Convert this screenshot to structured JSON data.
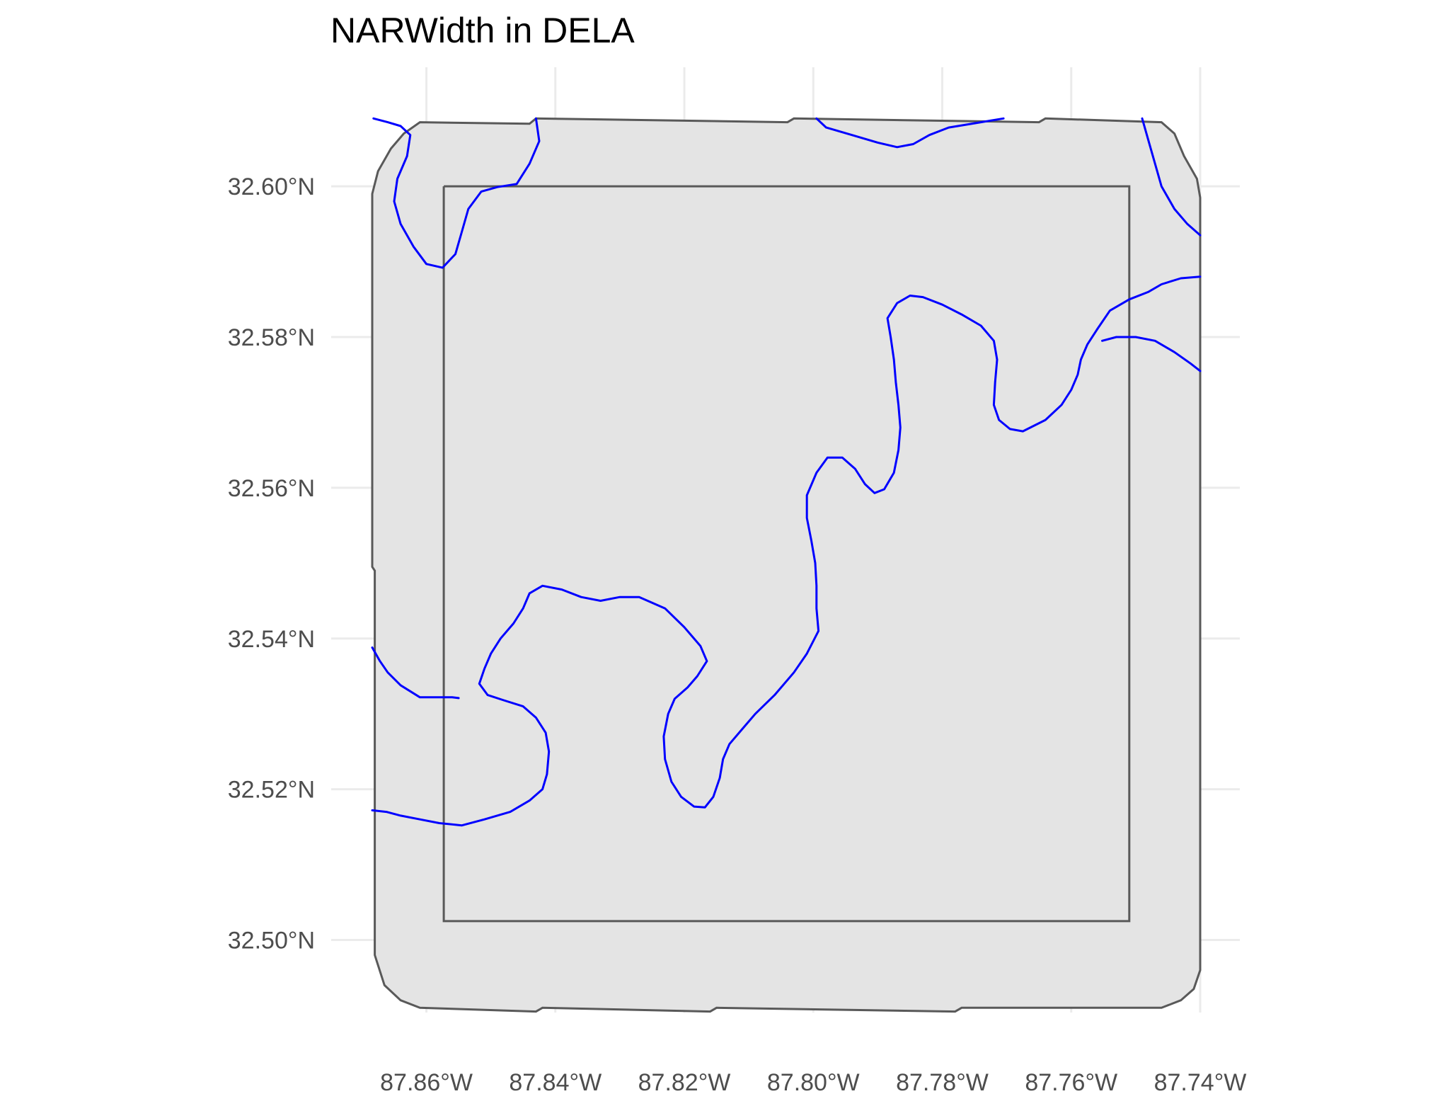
{
  "title": "NARWidth in DELA",
  "colors": {
    "background": "#ffffff",
    "gridline": "#ebebeb",
    "polygon_fill": "#e4e4e4",
    "polygon_stroke": "#595959",
    "river": "#0000ff",
    "tick_text": "#4d4d4d"
  },
  "map": {
    "x_range": [
      -87.8684,
      -87.74
    ],
    "y_range": [
      32.4915,
      32.6095
    ],
    "x_ticks": [
      {
        "value": -87.86,
        "label": "87.86°W"
      },
      {
        "value": -87.84,
        "label": "87.84°W"
      },
      {
        "value": -87.82,
        "label": "87.82°W"
      },
      {
        "value": -87.8,
        "label": "87.80°W"
      },
      {
        "value": -87.78,
        "label": "87.78°W"
      },
      {
        "value": -87.76,
        "label": "87.76°W"
      },
      {
        "value": -87.74,
        "label": "87.74°W"
      }
    ],
    "y_ticks": [
      {
        "value": 32.6,
        "label": "32.60°N"
      },
      {
        "value": 32.58,
        "label": "32.58°N"
      },
      {
        "value": 32.56,
        "label": "32.56°N"
      },
      {
        "value": 32.54,
        "label": "32.54°N"
      },
      {
        "value": 32.52,
        "label": "32.52°N"
      },
      {
        "value": 32.5,
        "label": "32.50°N"
      }
    ],
    "outer_boundary": [
      [
        -87.861,
        32.6085
      ],
      [
        -87.844,
        32.6083
      ],
      [
        -87.843,
        32.609
      ],
      [
        -87.804,
        32.6085
      ],
      [
        -87.803,
        32.609
      ],
      [
        -87.765,
        32.6085
      ],
      [
        -87.764,
        32.609
      ],
      [
        -87.746,
        32.6085
      ],
      [
        -87.744,
        32.607
      ],
      [
        -87.7425,
        32.604
      ],
      [
        -87.7405,
        32.601
      ],
      [
        -87.74,
        32.5985
      ],
      [
        -87.74,
        32.496
      ],
      [
        -87.741,
        32.4935
      ],
      [
        -87.743,
        32.492
      ],
      [
        -87.746,
        32.491
      ],
      [
        -87.777,
        32.491
      ],
      [
        -87.778,
        32.4905
      ],
      [
        -87.815,
        32.491
      ],
      [
        -87.816,
        32.4905
      ],
      [
        -87.842,
        32.491
      ],
      [
        -87.843,
        32.4905
      ],
      [
        -87.861,
        32.491
      ],
      [
        -87.864,
        32.492
      ],
      [
        -87.8665,
        32.494
      ],
      [
        -87.868,
        32.498
      ],
      [
        -87.868,
        32.549
      ],
      [
        -87.8684,
        32.5495
      ],
      [
        -87.8684,
        32.599
      ],
      [
        -87.8675,
        32.602
      ],
      [
        -87.8655,
        32.605
      ],
      [
        -87.8635,
        32.607
      ],
      [
        -87.861,
        32.6085
      ]
    ],
    "inner_box": [
      [
        -87.8573,
        32.6
      ],
      [
        -87.751,
        32.6
      ],
      [
        -87.751,
        32.5025
      ],
      [
        -87.8573,
        32.5025
      ],
      [
        -87.8573,
        32.6
      ]
    ],
    "rivers": [
      {
        "name": "channel-northwest-loop",
        "points": [
          [
            -87.8682,
            32.609
          ],
          [
            -87.866,
            32.6085
          ],
          [
            -87.864,
            32.608
          ],
          [
            -87.8625,
            32.6068
          ],
          [
            -87.863,
            32.604
          ],
          [
            -87.8645,
            32.601
          ],
          [
            -87.865,
            32.598
          ],
          [
            -87.864,
            32.595
          ],
          [
            -87.862,
            32.592
          ],
          [
            -87.86,
            32.5897
          ],
          [
            -87.8575,
            32.5892
          ],
          [
            -87.8555,
            32.591
          ],
          [
            -87.8545,
            32.594
          ],
          [
            -87.8535,
            32.597
          ],
          [
            -87.8515,
            32.5993
          ],
          [
            -87.849,
            32.5999
          ],
          [
            -87.846,
            32.6003
          ],
          [
            -87.844,
            32.603
          ],
          [
            -87.8425,
            32.606
          ],
          [
            -87.843,
            32.609
          ]
        ]
      },
      {
        "name": "channel-north-edge",
        "points": [
          [
            -87.7995,
            32.609
          ],
          [
            -87.798,
            32.6078
          ],
          [
            -87.794,
            32.6068
          ],
          [
            -87.79,
            32.6058
          ],
          [
            -87.787,
            32.6052
          ],
          [
            -87.7845,
            32.6056
          ],
          [
            -87.782,
            32.6068
          ],
          [
            -87.779,
            32.6078
          ],
          [
            -87.774,
            32.6085
          ],
          [
            -87.7705,
            32.609
          ]
        ]
      },
      {
        "name": "channel-northeast-corner",
        "points": [
          [
            -87.749,
            32.609
          ],
          [
            -87.748,
            32.606
          ],
          [
            -87.747,
            32.603
          ],
          [
            -87.746,
            32.6
          ],
          [
            -87.744,
            32.597
          ],
          [
            -87.742,
            32.595
          ],
          [
            -87.74,
            32.5935
          ]
        ]
      },
      {
        "name": "channel-east-upper",
        "points": [
          [
            -87.74,
            32.588
          ],
          [
            -87.743,
            32.5878
          ],
          [
            -87.746,
            32.587
          ],
          [
            -87.748,
            32.586
          ],
          [
            -87.751,
            32.585
          ],
          [
            -87.754,
            32.5835
          ],
          [
            -87.756,
            32.581
          ]
        ]
      },
      {
        "name": "channel-east-lower",
        "points": [
          [
            -87.7552,
            32.5795
          ],
          [
            -87.753,
            32.58
          ],
          [
            -87.75,
            32.58
          ],
          [
            -87.747,
            32.5795
          ],
          [
            -87.744,
            32.578
          ],
          [
            -87.7415,
            32.5765
          ],
          [
            -87.74,
            32.5755
          ]
        ]
      },
      {
        "name": "channel-main-meander",
        "points": [
          [
            -87.756,
            32.581
          ],
          [
            -87.7575,
            32.579
          ],
          [
            -87.7585,
            32.577
          ],
          [
            -87.759,
            32.575
          ],
          [
            -87.76,
            32.573
          ],
          [
            -87.7615,
            32.571
          ],
          [
            -87.764,
            32.569
          ],
          [
            -87.7675,
            32.5675
          ],
          [
            -87.7695,
            32.5678
          ],
          [
            -87.7712,
            32.569
          ],
          [
            -87.772,
            32.571
          ],
          [
            -87.7718,
            32.574
          ],
          [
            -87.7715,
            32.577
          ],
          [
            -87.772,
            32.5795
          ],
          [
            -87.774,
            32.5815
          ],
          [
            -87.777,
            32.583
          ],
          [
            -87.78,
            32.5843
          ],
          [
            -87.783,
            32.5853
          ],
          [
            -87.785,
            32.5855
          ],
          [
            -87.787,
            32.5845
          ],
          [
            -87.7885,
            32.5825
          ],
          [
            -87.788,
            32.58
          ],
          [
            -87.7875,
            32.577
          ],
          [
            -87.7872,
            32.574
          ],
          [
            -87.7868,
            32.571
          ],
          [
            -87.7865,
            32.568
          ],
          [
            -87.7868,
            32.565
          ],
          [
            -87.7875,
            32.562
          ],
          [
            -87.789,
            32.5598
          ],
          [
            -87.7905,
            32.5593
          ],
          [
            -87.792,
            32.5605
          ],
          [
            -87.7935,
            32.5625
          ],
          [
            -87.7955,
            32.564
          ],
          [
            -87.7978,
            32.564
          ],
          [
            -87.7995,
            32.562
          ],
          [
            -87.801,
            32.559
          ],
          [
            -87.801,
            32.556
          ],
          [
            -87.8003,
            32.553
          ],
          [
            -87.7997,
            32.55
          ],
          [
            -87.7995,
            32.547
          ],
          [
            -87.7995,
            32.544
          ],
          [
            -87.7992,
            32.541
          ],
          [
            -87.801,
            32.538
          ],
          [
            -87.803,
            32.5355
          ],
          [
            -87.806,
            32.5325
          ],
          [
            -87.809,
            32.53
          ],
          [
            -87.811,
            32.528
          ],
          [
            -87.813,
            32.526
          ],
          [
            -87.814,
            32.524
          ],
          [
            -87.8145,
            32.5215
          ],
          [
            -87.8155,
            32.519
          ],
          [
            -87.8168,
            32.5176
          ],
          [
            -87.8185,
            32.5177
          ],
          [
            -87.8205,
            32.519
          ],
          [
            -87.822,
            32.521
          ],
          [
            -87.823,
            32.524
          ],
          [
            -87.8232,
            32.527
          ],
          [
            -87.8225,
            32.53
          ],
          [
            -87.8215,
            32.532
          ],
          [
            -87.8195,
            32.5335
          ],
          [
            -87.818,
            32.535
          ],
          [
            -87.8165,
            32.537
          ],
          [
            -87.8175,
            32.539
          ],
          [
            -87.82,
            32.5415
          ],
          [
            -87.823,
            32.544
          ],
          [
            -87.827,
            32.5455
          ],
          [
            -87.83,
            32.5455
          ],
          [
            -87.833,
            32.545
          ],
          [
            -87.836,
            32.5455
          ],
          [
            -87.839,
            32.5465
          ],
          [
            -87.842,
            32.547
          ],
          [
            -87.844,
            32.546
          ],
          [
            -87.845,
            32.544
          ],
          [
            -87.8465,
            32.542
          ],
          [
            -87.8485,
            32.54
          ],
          [
            -87.85,
            32.538
          ],
          [
            -87.851,
            32.536
          ],
          [
            -87.8518,
            32.534
          ],
          [
            -87.8505,
            32.5325
          ],
          [
            -87.848,
            32.5318
          ],
          [
            -87.845,
            32.531
          ],
          [
            -87.843,
            32.5295
          ],
          [
            -87.8415,
            32.5275
          ],
          [
            -87.841,
            32.525
          ],
          [
            -87.8413,
            32.522
          ],
          [
            -87.842,
            32.52
          ],
          [
            -87.844,
            32.5185
          ],
          [
            -87.847,
            32.517
          ],
          [
            -87.851,
            32.516
          ],
          [
            -87.8545,
            32.5152
          ],
          [
            -87.858,
            32.5155
          ],
          [
            -87.861,
            32.516
          ],
          [
            -87.864,
            32.5165
          ],
          [
            -87.8662,
            32.517
          ],
          [
            -87.8684,
            32.5172
          ]
        ]
      },
      {
        "name": "channel-west-branch",
        "points": [
          [
            -87.8684,
            32.5388
          ],
          [
            -87.8672,
            32.537
          ],
          [
            -87.866,
            32.5355
          ],
          [
            -87.864,
            32.5338
          ],
          [
            -87.861,
            32.5322
          ],
          [
            -87.8585,
            32.5322
          ],
          [
            -87.856,
            32.5322
          ],
          [
            -87.855,
            32.5321
          ]
        ]
      }
    ]
  }
}
